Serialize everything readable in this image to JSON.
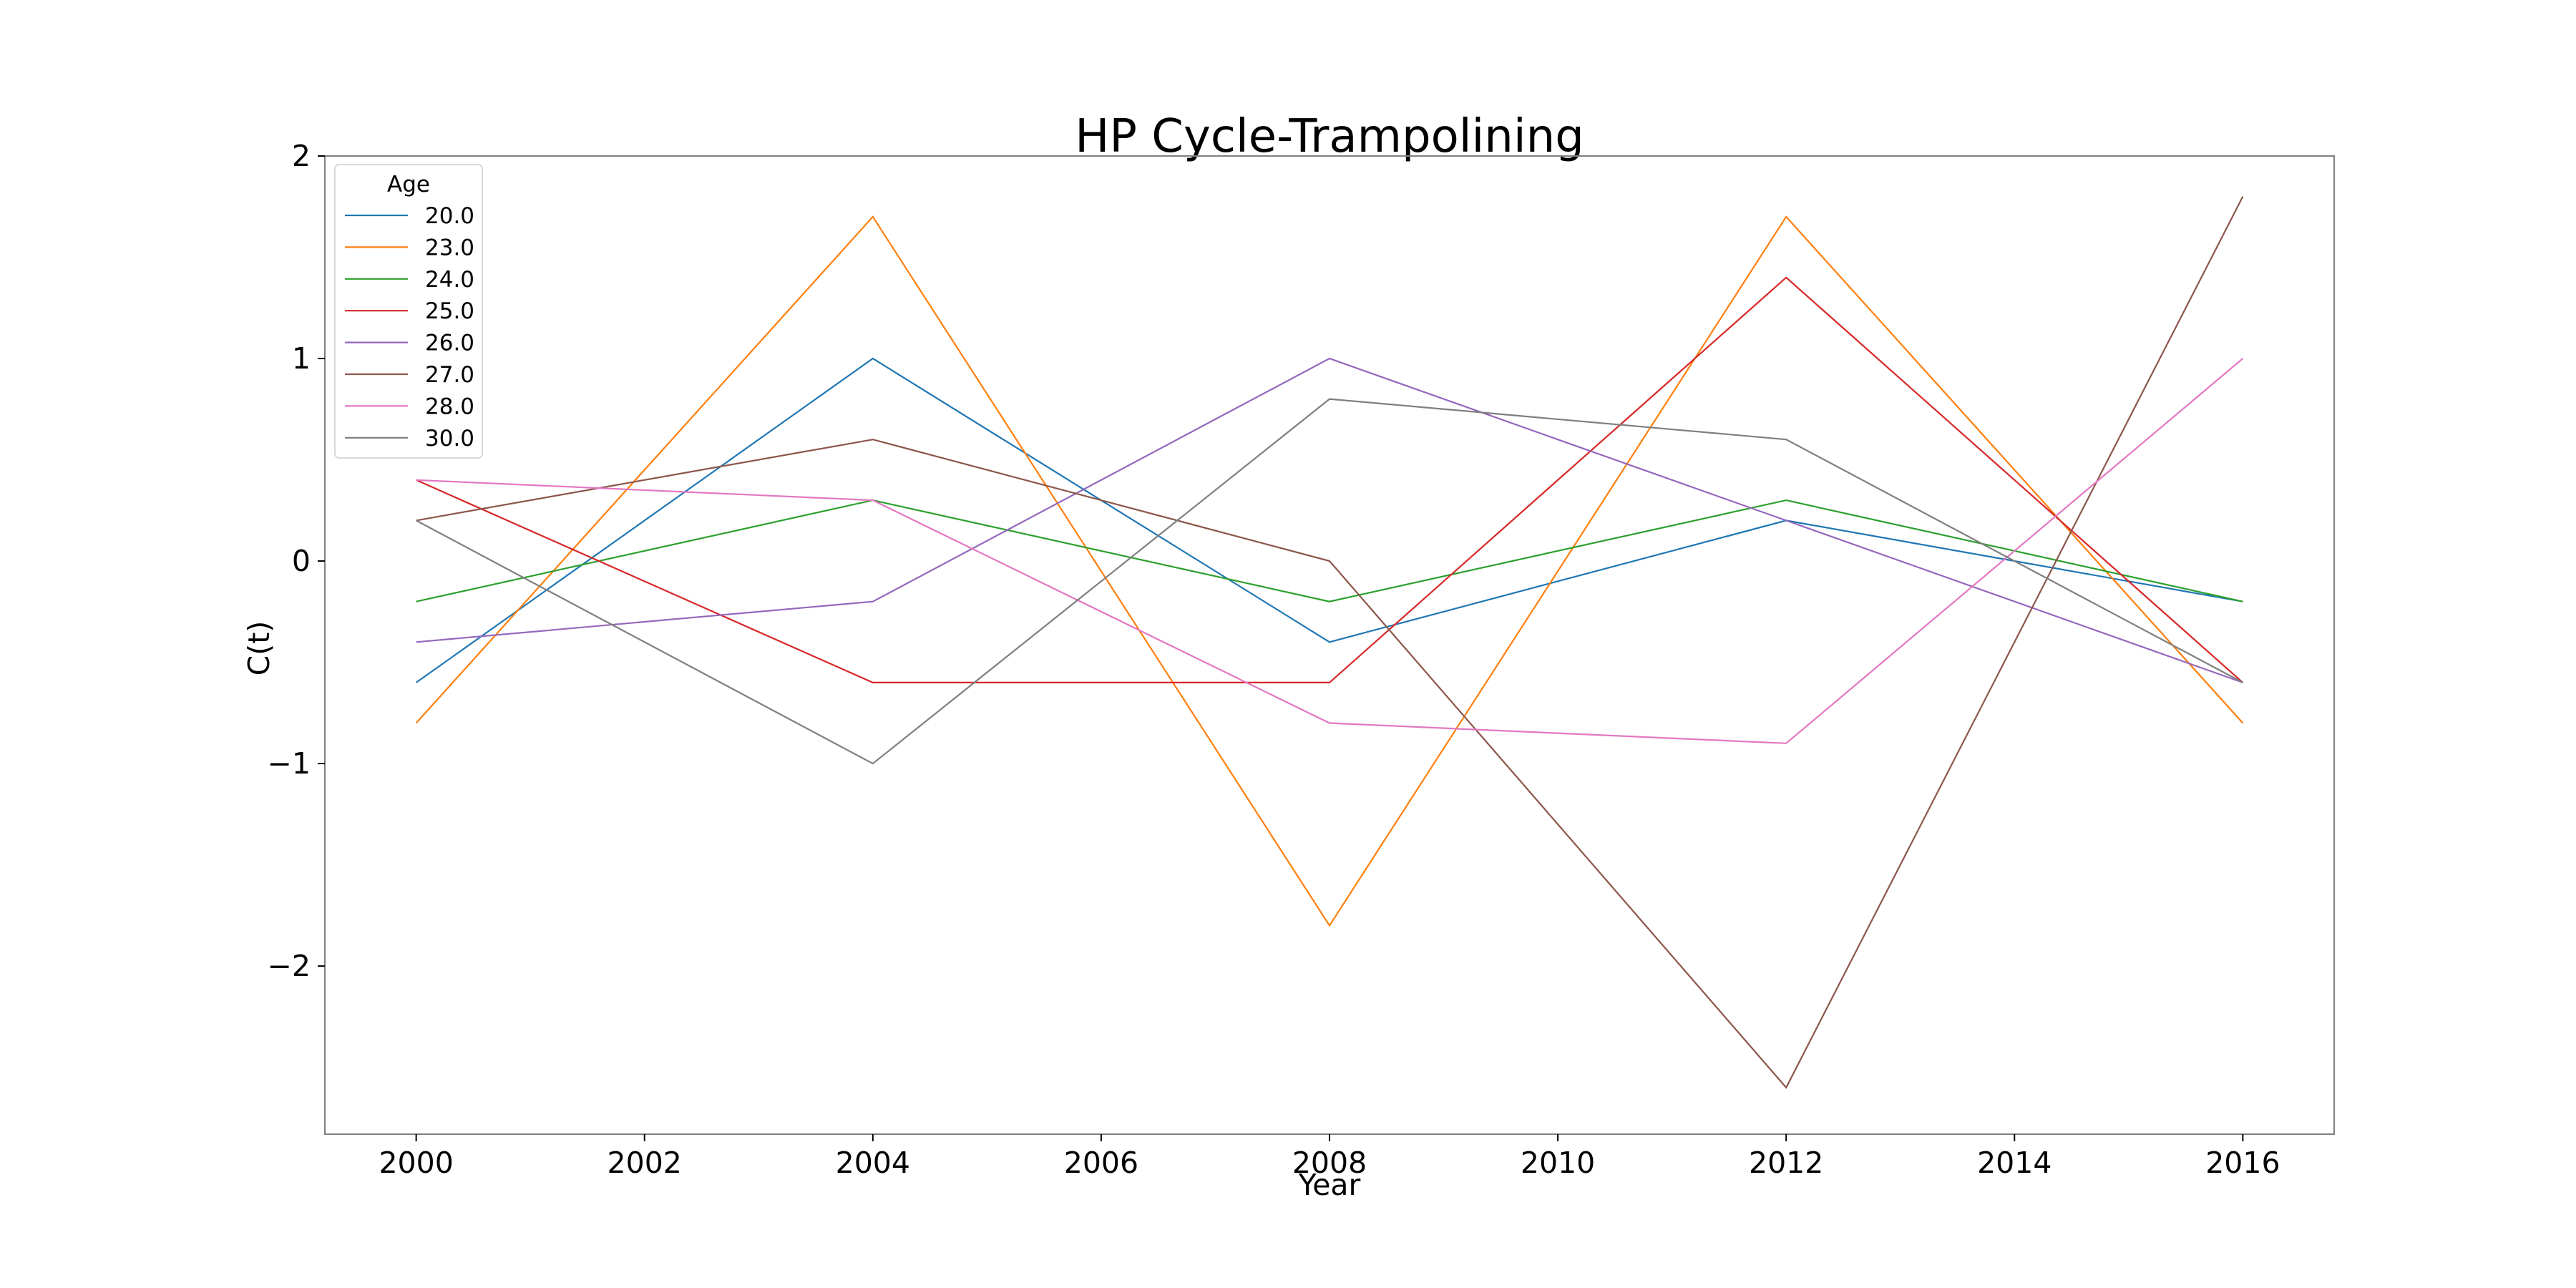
{
  "chart_data": {
    "type": "line",
    "title": "HP Cycle-Trampolining",
    "xlabel": "Year",
    "ylabel": "C(t)",
    "x": [
      2000,
      2004,
      2008,
      2012,
      2016
    ],
    "xticks": [
      2000,
      2002,
      2004,
      2006,
      2008,
      2010,
      2012,
      2014,
      2016
    ],
    "xtick_labels": [
      "2000",
      "2002",
      "2004",
      "2006",
      "2008",
      "2010",
      "2012",
      "2014",
      "2016"
    ],
    "yticks": [
      -2,
      -1,
      0,
      1,
      2
    ],
    "ytick_labels": [
      "−2",
      "−1",
      "0",
      "1",
      "2"
    ],
    "xlim": [
      1999.2,
      2016.8
    ],
    "ylim": [
      -2.83,
      2.0
    ],
    "grid": false,
    "legend": {
      "title": "Age",
      "placement": "top-left"
    },
    "series": [
      {
        "name": "20.0",
        "color": "#1f77b4",
        "values": [
          -0.6,
          1.0,
          -0.4,
          0.2,
          -0.2
        ]
      },
      {
        "name": "23.0",
        "color": "#ff7f0e",
        "values": [
          -0.8,
          1.7,
          -1.8,
          1.7,
          -0.8
        ]
      },
      {
        "name": "24.0",
        "color": "#2ca02c",
        "values": [
          -0.2,
          0.3,
          -0.2,
          0.3,
          -0.2
        ]
      },
      {
        "name": "25.0",
        "color": "#d62728",
        "values": [
          0.4,
          -0.6,
          -0.6,
          1.4,
          -0.6
        ]
      },
      {
        "name": "26.0",
        "color": "#9467bd",
        "values": [
          -0.4,
          -0.2,
          1.0,
          0.2,
          -0.6
        ]
      },
      {
        "name": "27.0",
        "color": "#8c564b",
        "values": [
          0.2,
          0.6,
          0.0,
          -2.6,
          1.8
        ]
      },
      {
        "name": "28.0",
        "color": "#e377c2",
        "values": [
          0.4,
          0.3,
          -0.8,
          -0.9,
          1.0
        ]
      },
      {
        "name": "30.0",
        "color": "#7f7f7f",
        "values": [
          0.2,
          -1.0,
          0.8,
          0.6,
          -0.6
        ]
      }
    ]
  }
}
